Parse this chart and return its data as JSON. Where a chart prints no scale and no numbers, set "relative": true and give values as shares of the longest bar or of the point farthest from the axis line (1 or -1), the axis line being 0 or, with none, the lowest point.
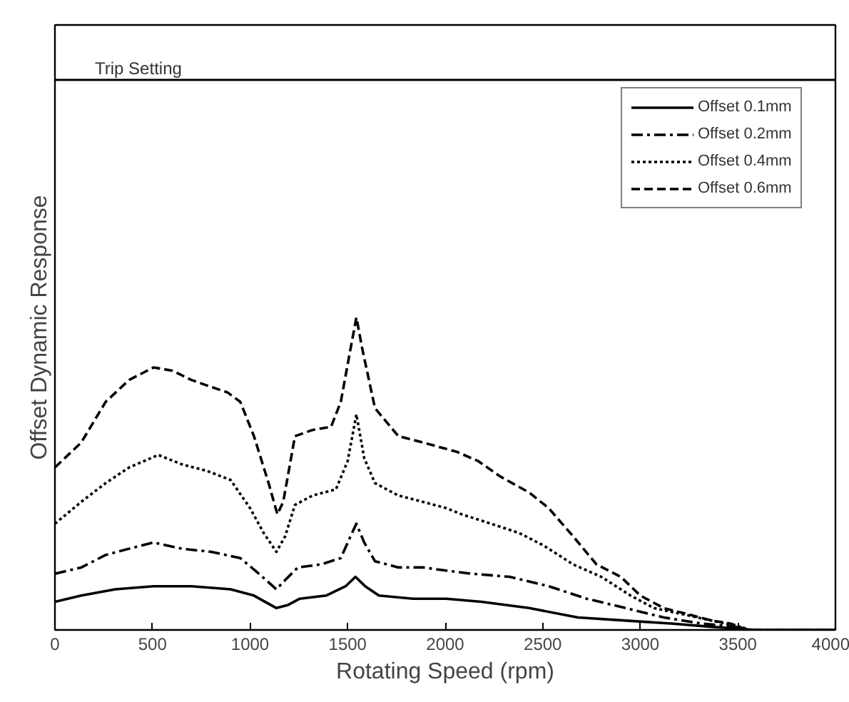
{
  "chart_data": {
    "type": "line",
    "xlabel": "Rotating Speed (rpm)",
    "ylabel": "Offset Dynamic Response",
    "relative": true,
    "tick_labels": "x",
    "grid": false,
    "legend": "top right",
    "xlim": [
      0,
      4000
    ],
    "xticks": [
      0,
      500,
      1000,
      1500,
      2000,
      2500,
      3000,
      3500,
      4000
    ],
    "ref_lines": [
      {
        "axis": "y",
        "value": 1.76,
        "label": "Trip Setting",
        "color": "#000000"
      }
    ],
    "series": [
      {
        "name": "Offset 0.1mm",
        "color": "#000000",
        "line_style": "solid",
        "x": [
          0,
          135,
          310,
          505,
          700,
          900,
          1020,
          1135,
          1195,
          1255,
          1390,
          1490,
          1540,
          1590,
          1660,
          1835,
          2005,
          2185,
          2430,
          2680,
          2925,
          3170,
          3365,
          3515,
          3600,
          4000
        ],
        "values": [
          0.09,
          0.11,
          0.13,
          0.14,
          0.14,
          0.13,
          0.11,
          0.07,
          0.08,
          0.1,
          0.11,
          0.14,
          0.17,
          0.14,
          0.11,
          0.1,
          0.1,
          0.09,
          0.07,
          0.04,
          0.03,
          0.02,
          0.01,
          0.003,
          0,
          0
        ]
      },
      {
        "name": "Offset 0.2mm",
        "color": "#000000",
        "line_style": "dashdot",
        "x": [
          0,
          135,
          260,
          380,
          505,
          650,
          800,
          950,
          1045,
          1135,
          1180,
          1245,
          1365,
          1465,
          1515,
          1545,
          1585,
          1640,
          1760,
          1885,
          2005,
          2135,
          2330,
          2530,
          2725,
          2925,
          3120,
          3320,
          3490,
          3550,
          4000
        ],
        "values": [
          0.18,
          0.2,
          0.24,
          0.26,
          0.28,
          0.26,
          0.25,
          0.23,
          0.18,
          0.13,
          0.16,
          0.2,
          0.21,
          0.23,
          0.3,
          0.34,
          0.28,
          0.22,
          0.2,
          0.2,
          0.19,
          0.18,
          0.17,
          0.14,
          0.1,
          0.07,
          0.04,
          0.02,
          0.01,
          0,
          0
        ]
      },
      {
        "name": "Offset 0.4mm",
        "color": "#000000",
        "line_style": "dotted",
        "x": [
          0,
          135,
          260,
          380,
          530,
          650,
          775,
          900,
          1000,
          1070,
          1135,
          1180,
          1230,
          1320,
          1440,
          1500,
          1545,
          1585,
          1640,
          1760,
          1885,
          2005,
          2085,
          2235,
          2380,
          2505,
          2655,
          2800,
          2950,
          3070,
          3220,
          3365,
          3515,
          3560,
          4000
        ],
        "values": [
          0.34,
          0.41,
          0.47,
          0.52,
          0.56,
          0.53,
          0.51,
          0.48,
          0.39,
          0.31,
          0.25,
          0.3,
          0.4,
          0.43,
          0.45,
          0.54,
          0.69,
          0.55,
          0.47,
          0.43,
          0.41,
          0.39,
          0.37,
          0.34,
          0.31,
          0.27,
          0.21,
          0.17,
          0.11,
          0.07,
          0.05,
          0.03,
          0.01,
          0,
          0
        ]
      },
      {
        "name": "Offset 0.6mm",
        "color": "#000000",
        "line_style": "dashed",
        "x": [
          0,
          135,
          260,
          380,
          505,
          600,
          700,
          790,
          885,
          950,
          1020,
          1095,
          1140,
          1170,
          1230,
          1320,
          1415,
          1465,
          1515,
          1545,
          1575,
          1640,
          1760,
          1885,
          2060,
          2170,
          2285,
          2430,
          2530,
          2655,
          2775,
          2900,
          3000,
          3120,
          3245,
          3365,
          3465,
          3550,
          4000
        ],
        "values": [
          0.52,
          0.6,
          0.73,
          0.8,
          0.84,
          0.83,
          0.8,
          0.78,
          0.76,
          0.73,
          0.62,
          0.47,
          0.37,
          0.41,
          0.62,
          0.64,
          0.65,
          0.73,
          0.9,
          1,
          0.9,
          0.71,
          0.62,
          0.6,
          0.57,
          0.54,
          0.49,
          0.44,
          0.39,
          0.3,
          0.21,
          0.17,
          0.11,
          0.07,
          0.05,
          0.03,
          0.02,
          0,
          0
        ]
      }
    ]
  }
}
